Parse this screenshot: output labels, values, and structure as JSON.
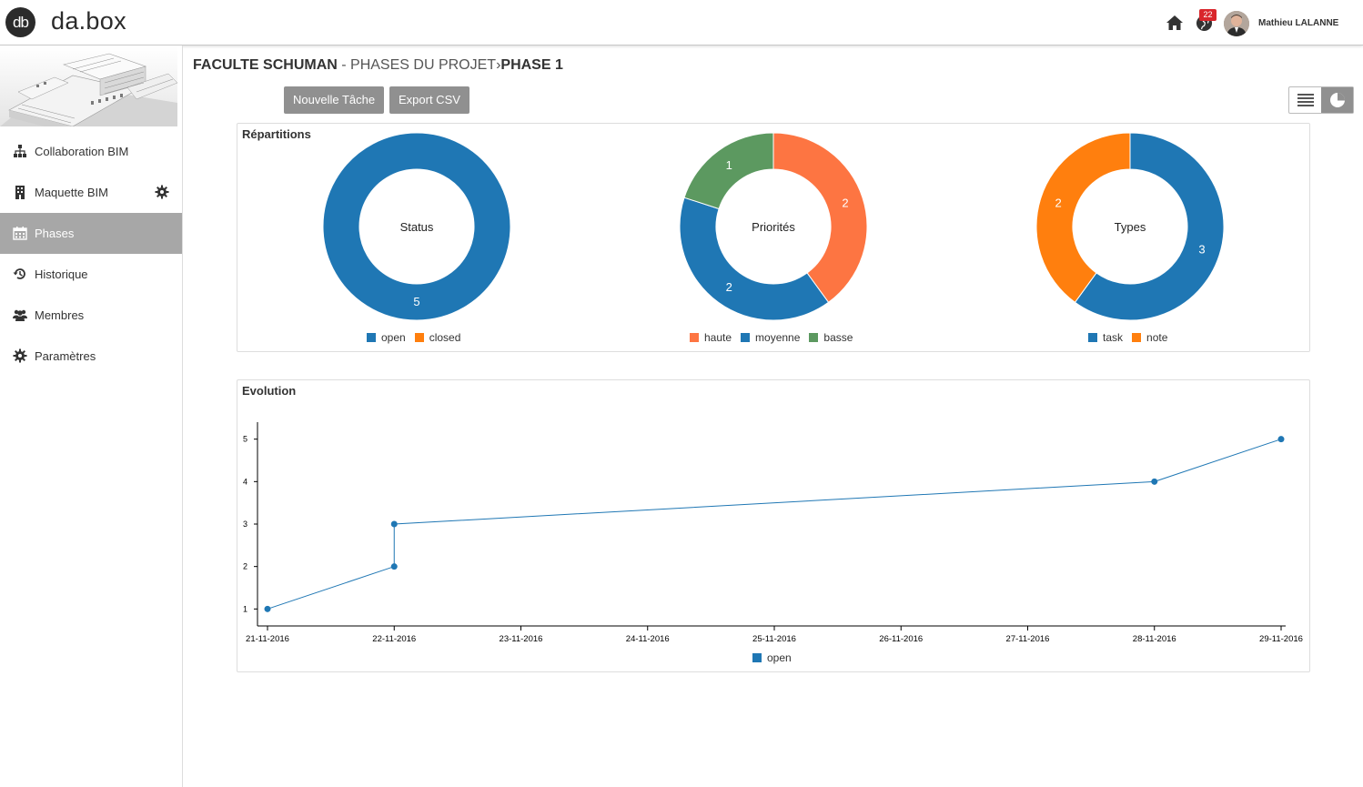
{
  "app": {
    "logo_badge": "db",
    "logo_text": "da.box",
    "notifications": "22",
    "user_name": "Mathieu LALANNE"
  },
  "sidebar": {
    "items": [
      {
        "label": "Collaboration BIM",
        "icon": "sitemap-icon"
      },
      {
        "label": "Maquette BIM",
        "icon": "building-icon"
      },
      {
        "label": "Phases",
        "icon": "calendar-icon",
        "active": true
      },
      {
        "label": "Historique",
        "icon": "history-icon"
      },
      {
        "label": "Membres",
        "icon": "users-icon"
      },
      {
        "label": "Paramètres",
        "icon": "cog-icon"
      }
    ]
  },
  "breadcrumb": {
    "project": "FACULTE SCHUMAN",
    "separator": " - ",
    "phases": "PHASES DU PROJET",
    "arrow": "›",
    "phase": "PHASE 1"
  },
  "toolbar": {
    "new_task": "Nouvelle Tâche",
    "export_csv": "Export CSV"
  },
  "colors": {
    "blue": "#1f77b4",
    "orange": "#ff7f0e",
    "coral": "#fd7542",
    "green": "#5c9960"
  },
  "repartitions": {
    "title": "Répartitions",
    "charts": [
      {
        "center_label": "Status",
        "slices": [
          {
            "name": "open",
            "value": 5,
            "color": "#1f77b4"
          },
          {
            "name": "closed",
            "value": 0,
            "color": "#ff7f0e"
          }
        ]
      },
      {
        "center_label": "Priorités",
        "slices": [
          {
            "name": "haute",
            "value": 2,
            "color": "#fd7542"
          },
          {
            "name": "moyenne",
            "value": 2,
            "color": "#1f77b4"
          },
          {
            "name": "basse",
            "value": 1,
            "color": "#5c9960"
          }
        ]
      },
      {
        "center_label": "Types",
        "slices": [
          {
            "name": "task",
            "value": 3,
            "color": "#1f77b4"
          },
          {
            "name": "note",
            "value": 2,
            "color": "#ff7f0e"
          }
        ]
      }
    ]
  },
  "chart_data": {
    "type": "line",
    "title": "Evolution",
    "x_ticks": [
      "21-11-2016",
      "22-11-2016",
      "23-11-2016",
      "24-11-2016",
      "25-11-2016",
      "26-11-2016",
      "27-11-2016",
      "28-11-2016",
      "29-11-2016"
    ],
    "y_ticks": [
      1,
      2,
      3,
      4,
      5
    ],
    "ylim": [
      0.6,
      5.4
    ],
    "series": [
      {
        "name": "open",
        "color": "#1f77b4",
        "points": [
          {
            "x": "21-11-2016",
            "y": 1
          },
          {
            "x": "22-11-2016",
            "y": 2
          },
          {
            "x": "22-11-2016",
            "y": 3
          },
          {
            "x": "28-11-2016",
            "y": 4
          },
          {
            "x": "29-11-2016",
            "y": 5
          }
        ]
      }
    ]
  }
}
